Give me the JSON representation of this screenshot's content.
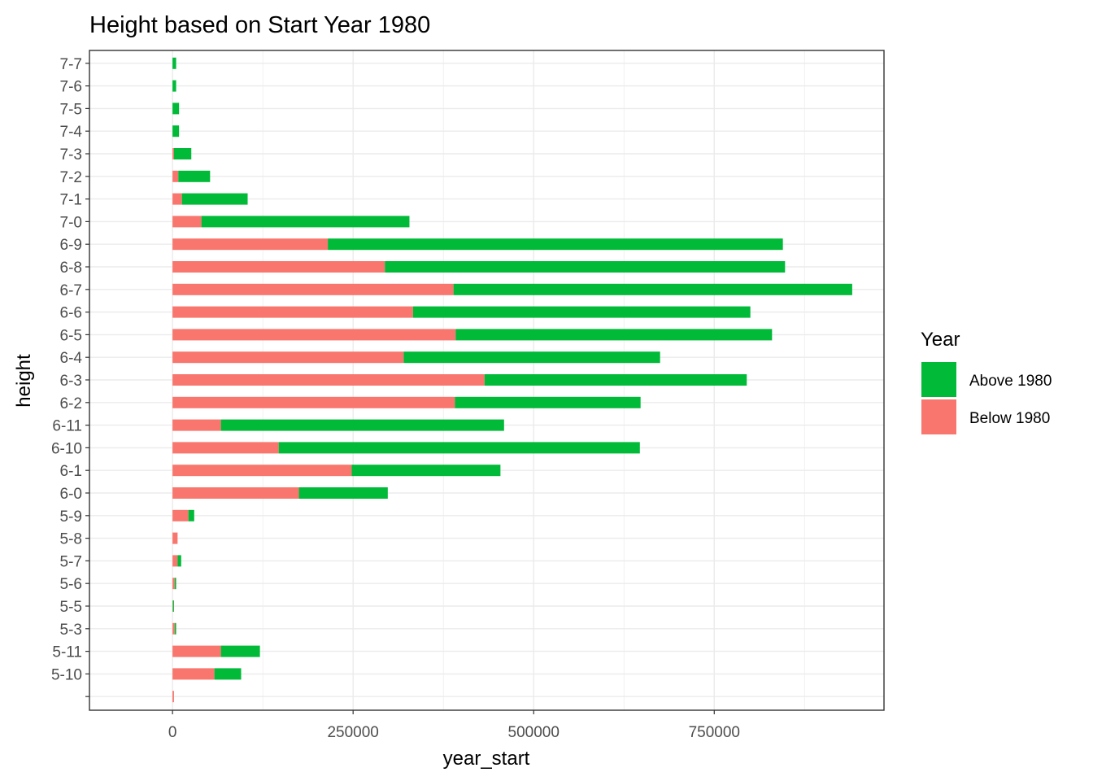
{
  "chart_data": {
    "type": "bar",
    "orientation": "horizontal",
    "stacked": true,
    "title": "Height based on Start Year 1980",
    "xlabel": "year_start",
    "ylabel": "height",
    "xlim": [
      -115000,
      985000
    ],
    "xticks": [
      0,
      250000,
      500000,
      750000
    ],
    "xtick_labels": [
      "0",
      "250000",
      "500000",
      "750000"
    ],
    "grid": true,
    "legend": {
      "title": "Year",
      "placement": "right"
    },
    "categories": [
      "",
      "5-10",
      "5-11",
      "5-3",
      "5-5",
      "5-6",
      "5-7",
      "5-8",
      "5-9",
      "6-0",
      "6-1",
      "6-10",
      "6-11",
      "6-2",
      "6-3",
      "6-4",
      "6-5",
      "6-6",
      "6-7",
      "6-8",
      "6-9",
      "7-0",
      "7-1",
      "7-2",
      "7-3",
      "7-4",
      "7-5",
      "7-6",
      "7-7"
    ],
    "series": [
      {
        "name": "Below 1980",
        "color": "#F8766D",
        "values": [
          2000,
          58000,
          67000,
          3000,
          500,
          3000,
          7000,
          7000,
          22000,
          175000,
          248000,
          147000,
          67000,
          391000,
          432000,
          320000,
          392000,
          333000,
          389000,
          294000,
          215000,
          40000,
          13000,
          8000,
          2000,
          0,
          0,
          0,
          0
        ]
      },
      {
        "name": "Above 1980",
        "color": "#00BA38",
        "values": [
          0,
          37000,
          54000,
          2000,
          1500,
          2000,
          5000,
          0,
          8000,
          123000,
          206000,
          500000,
          392000,
          257000,
          363000,
          355000,
          438000,
          467000,
          552000,
          554000,
          630000,
          288000,
          91000,
          44000,
          24000,
          9000,
          9000,
          5000,
          5000
        ]
      }
    ]
  }
}
